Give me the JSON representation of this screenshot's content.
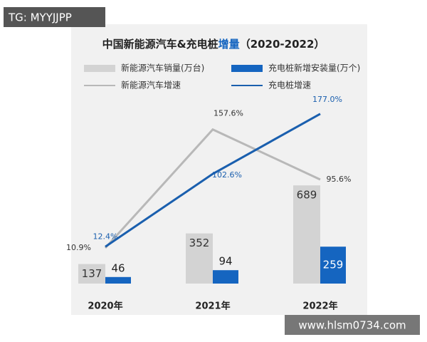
{
  "chart_data": {
    "type": "combo",
    "title": [
      "中国新能源汽车&充电桩",
      "增量",
      "（2020-2022）"
    ],
    "categories": [
      "2020年",
      "2021年",
      "2022年"
    ],
    "series": [
      {
        "name": "新能源汽车销量(万台)",
        "type": "bar",
        "color": "#d3d3d3",
        "values": [
          137,
          352,
          689
        ]
      },
      {
        "name": "充电桩新增安装量(万个)",
        "type": "bar",
        "color": "#1565c0",
        "values": [
          46,
          94,
          259
        ]
      },
      {
        "name": "新能源汽车增速",
        "type": "line",
        "color": "#b8b8b8",
        "values": [
          10.9,
          157.6,
          95.6
        ],
        "value_labels": [
          "10.9%",
          "157.6%",
          "95.6%"
        ]
      },
      {
        "name": "充电桩增速",
        "type": "line",
        "color": "#1a5fae",
        "values": [
          12.4,
          102.6,
          177.0
        ],
        "value_labels": [
          "12.4%",
          "102.6%",
          "177.0%"
        ]
      }
    ]
  },
  "watermarks": [
    "TG: MYYJJPP",
    "www.hlsm0734.com"
  ]
}
